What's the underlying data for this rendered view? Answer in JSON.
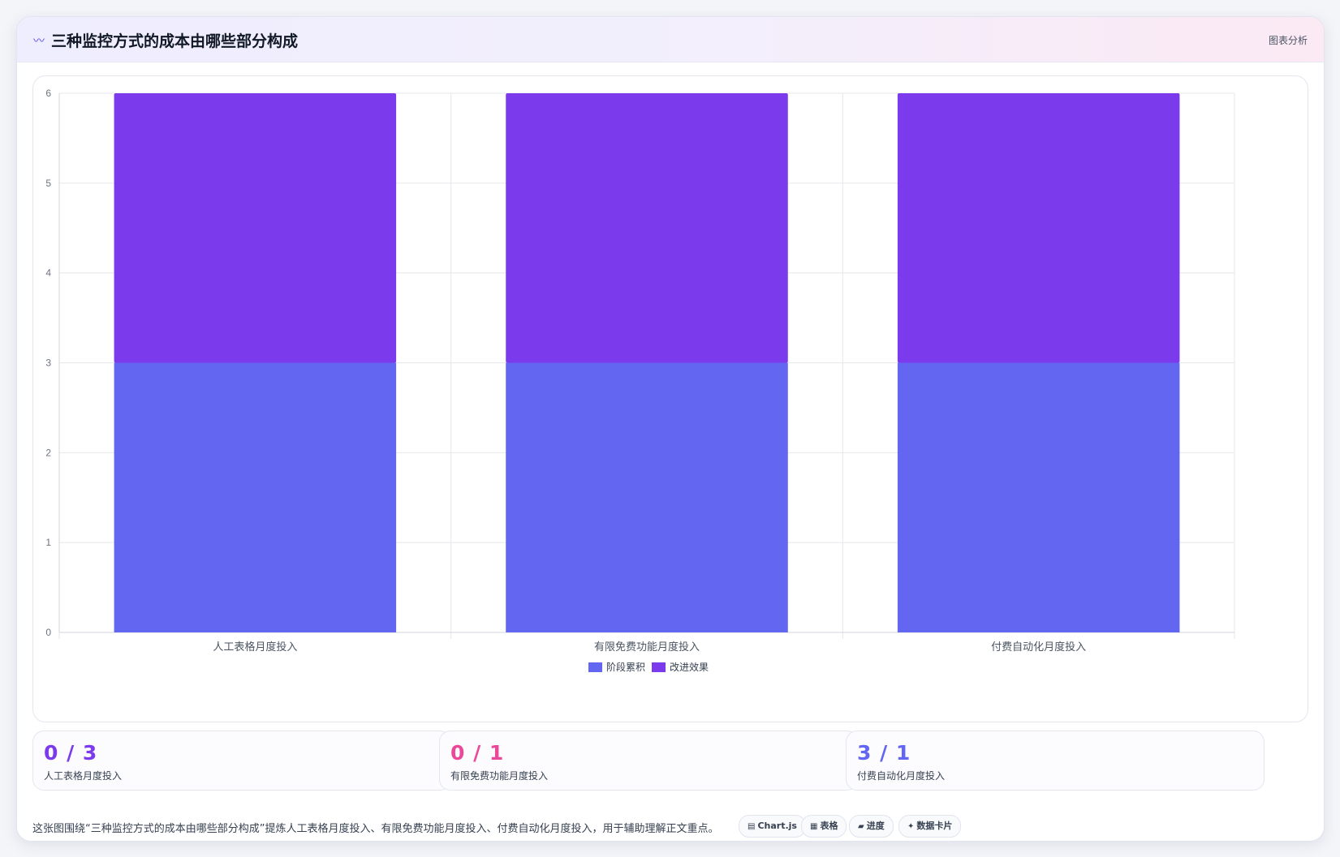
{
  "header": {
    "icon": "wave-icon",
    "title": "三种监控方式的成本由哪些部分构成",
    "tag": "图表分析"
  },
  "colors": {
    "series_1": "#6366f1",
    "series_2": "#7c3aed",
    "stat_1": "#7c3aed",
    "stat_2": "#ec4899",
    "stat_3": "#6366f1"
  },
  "chart_data": {
    "type": "bar",
    "stacked": true,
    "categories": [
      "人工表格月度投入",
      "有限免费功能月度投入",
      "付费自动化月度投入"
    ],
    "series": [
      {
        "name": "阶段累积",
        "values": [
          3,
          3,
          3
        ],
        "color": "#6366f1"
      },
      {
        "name": "改进效果",
        "values": [
          3,
          3,
          3
        ],
        "color": "#7c3aed"
      }
    ],
    "ylim": [
      0,
      6
    ],
    "yticks": [
      "0",
      "1",
      "2",
      "3",
      "4",
      "5",
      "6"
    ],
    "grid": true,
    "legend": "bottom"
  },
  "stats": [
    {
      "value": "0 / 3",
      "label": "人工表格月度投入"
    },
    {
      "value": "0 / 1",
      "label": "有限免费功能月度投入"
    },
    {
      "value": "3 / 1",
      "label": "付费自动化月度投入"
    }
  ],
  "footer": {
    "text": "这张图围绕“三种监控方式的成本由哪些部分构成”提炼人工表格月度投入、有限免费功能月度投入、付费自动化月度投入，用于辅助理解正文重点。",
    "chips": [
      {
        "icon": "chart-icon",
        "glyph": "▤",
        "label": "Chart.js"
      },
      {
        "icon": "table-icon",
        "glyph": "▦",
        "label": "表格"
      },
      {
        "icon": "progress-icon",
        "glyph": "▰",
        "label": "进度"
      },
      {
        "icon": "sparkle-icon",
        "glyph": "✦",
        "label": "数据卡片"
      }
    ]
  }
}
